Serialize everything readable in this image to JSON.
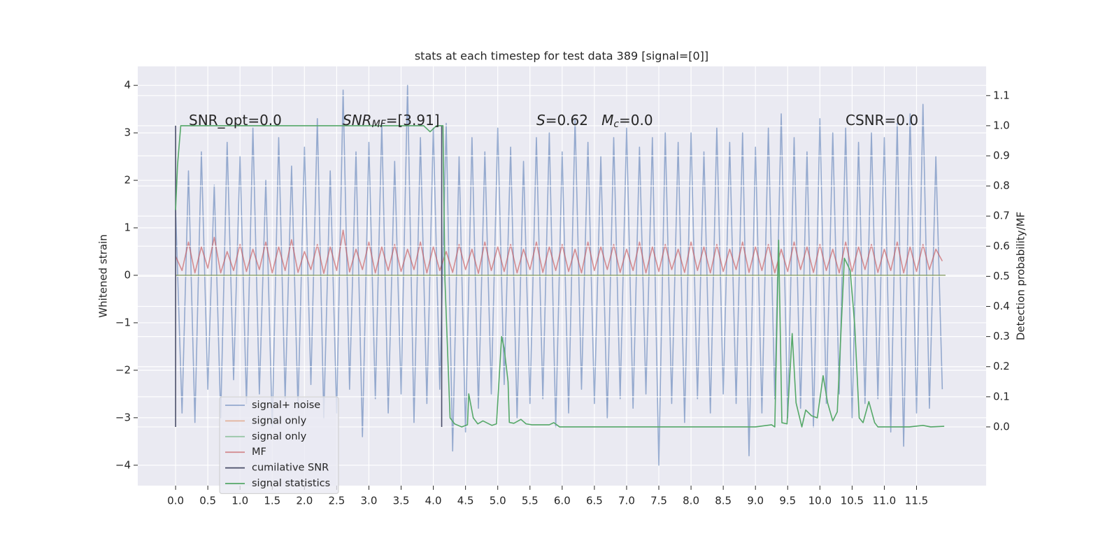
{
  "chart_data": {
    "type": "line",
    "title": "stats at each timestep for test data 389 [signal=[0]]",
    "y_label": "Whitened strain",
    "y2_label": "Detection probability/MF",
    "xlim": [
      -0.587,
      12.58
    ],
    "ylim": [
      -4.43,
      4.4
    ],
    "y2lim": [
      -0.195,
      1.197
    ],
    "xticks": [
      {
        "value": 0,
        "label": "0.0"
      },
      0.5,
      {
        "value": 1,
        "label": "1.0"
      },
      1.5,
      {
        "value": 2,
        "label": "2.0"
      },
      2.5,
      {
        "value": 3,
        "label": "3.0"
      },
      3.5,
      {
        "value": 4,
        "label": "4.0"
      },
      4.5,
      {
        "value": 5,
        "label": "5.0"
      },
      5.5,
      {
        "value": 6,
        "label": "6.0"
      },
      6.5,
      {
        "value": 7,
        "label": "7.0"
      },
      7.5,
      {
        "value": 8,
        "label": "8.0"
      },
      8.5,
      {
        "value": 9,
        "label": "9.0"
      },
      9.5,
      {
        "value": 10,
        "label": "10.0"
      },
      10.5,
      {
        "value": 11,
        "label": "11.0"
      },
      11.5
    ],
    "yticks": [
      {
        "value": -4,
        "label": "−4"
      },
      {
        "value": -3,
        "label": "−3"
      },
      {
        "value": -2,
        "label": "−2"
      },
      {
        "value": -1,
        "label": "−1"
      },
      0,
      1,
      2,
      3,
      4
    ],
    "y2ticks": [
      {
        "value": 0,
        "label": "0.0"
      },
      0.1,
      0.2,
      0.3,
      0.4,
      0.5,
      0.6,
      0.7,
      0.8,
      0.9,
      {
        "value": 1,
        "label": "1.0"
      },
      1.1
    ],
    "grid": true,
    "legend_position": "lower left",
    "x": [
      0,
      0.1,
      0.2,
      0.3,
      0.4,
      0.5,
      0.6,
      0.7,
      0.8,
      0.9,
      1,
      1.1,
      1.2,
      1.3,
      1.4,
      1.5,
      1.6,
      1.7,
      1.8,
      1.9,
      2,
      2.1,
      2.2,
      2.3,
      2.4,
      2.5,
      2.6,
      2.7,
      2.8,
      2.9,
      3,
      3.1,
      3.2,
      3.3,
      3.4,
      3.5,
      3.6,
      3.7,
      3.8,
      3.9,
      4,
      4.1,
      4.2,
      4.3,
      4.4,
      4.5,
      4.6,
      4.7,
      4.8,
      4.9,
      5,
      5.1,
      5.2,
      5.3,
      5.4,
      5.5,
      5.6,
      5.7,
      5.8,
      5.9,
      6,
      6.1,
      6.2,
      6.3,
      6.4,
      6.5,
      6.6,
      6.7,
      6.8,
      6.9,
      7,
      7.1,
      7.2,
      7.3,
      7.4,
      7.5,
      7.6,
      7.7,
      7.8,
      7.9,
      8,
      8.1,
      8.2,
      8.3,
      8.4,
      8.5,
      8.6,
      8.7,
      8.8,
      8.9,
      9,
      9.1,
      9.2,
      9.3,
      9.4,
      9.5,
      9.6,
      9.7,
      9.8,
      9.9,
      10,
      10.1,
      10.2,
      10.3,
      10.4,
      10.5,
      10.6,
      10.7,
      10.8,
      10.9,
      11,
      11.1,
      11.2,
      11.3,
      11.4,
      11.5,
      11.6,
      11.7,
      11.8,
      11.9
    ],
    "series": [
      {
        "name": "signal+ noise",
        "color": "#4c72b0",
        "opacity": 0.55,
        "values": [
          1.4,
          -2.9,
          2.2,
          -3.1,
          2.6,
          -2.4,
          1.9,
          -3.0,
          2.8,
          -2.2,
          2.5,
          -2.7,
          3.1,
          -2.5,
          2.0,
          -3.2,
          2.9,
          -2.6,
          2.3,
          -2.8,
          2.7,
          -2.3,
          3.3,
          -3.0,
          2.2,
          -2.9,
          3.9,
          -2.4,
          2.6,
          -3.4,
          2.8,
          -2.6,
          3.2,
          -2.9,
          2.4,
          -2.5,
          4.0,
          -3.1,
          2.9,
          -2.7,
          3.1,
          -2.4,
          3.2,
          -3.7,
          2.5,
          -3.3,
          2.9,
          -2.8,
          2.6,
          -2.5,
          3.1,
          -2.3,
          2.7,
          -3.0,
          2.4,
          -2.7,
          2.9,
          -2.6,
          3.0,
          -3.2,
          2.6,
          -2.9,
          3.3,
          -2.4,
          2.8,
          -2.7,
          2.5,
          -3.0,
          2.9,
          -2.6,
          3.1,
          -2.8,
          2.7,
          -2.5,
          2.9,
          -4.0,
          3.0,
          -2.7,
          2.8,
          -3.1,
          3.0,
          -2.6,
          2.6,
          -2.9,
          3.1,
          -2.5,
          2.8,
          -2.7,
          3.0,
          -3.8,
          2.7,
          -2.9,
          3.1,
          -2.6,
          3.4,
          -3.0,
          2.9,
          -2.8,
          2.6,
          -3.2,
          3.3,
          -2.7,
          3.0,
          -2.5,
          3.1,
          -3.0,
          2.8,
          -2.7,
          3.0,
          -2.6,
          2.9,
          -3.3,
          3.2,
          -3.6,
          3.4,
          -2.9,
          3.6,
          -2.8,
          2.5,
          -2.4
        ]
      },
      {
        "name": "signal only",
        "color": "#dd8452",
        "opacity": 0.55,
        "x": [
          0,
          11.95
        ],
        "values": [
          0,
          0
        ]
      },
      {
        "name": "signal only",
        "color": "#55a868",
        "opacity": 0.55,
        "x": [
          0,
          11.95
        ],
        "values": [
          0,
          0
        ]
      },
      {
        "name": "MF",
        "color": "#c44e52",
        "opacity": 0.6,
        "values": [
          0.4,
          0.1,
          0.7,
          0.05,
          0.6,
          0.15,
          0.8,
          0.05,
          0.5,
          0.1,
          0.65,
          0.08,
          0.55,
          0.12,
          0.7,
          0.05,
          0.6,
          0.1,
          0.75,
          0.06,
          0.5,
          0.12,
          0.65,
          0.04,
          0.6,
          0.1,
          0.95,
          0.07,
          0.55,
          0.12,
          0.7,
          0.05,
          0.6,
          0.1,
          0.65,
          0.08,
          0.55,
          0.12,
          0.7,
          0.05,
          0.6,
          0.1,
          0.5,
          0.06,
          0.65,
          0.12,
          0.55,
          0.04,
          0.7,
          0.1,
          0.6,
          0.08,
          0.65,
          0.05,
          0.55,
          0.12,
          0.7,
          0.06,
          0.6,
          0.1,
          0.65,
          0.08,
          0.55,
          0.05,
          0.7,
          0.1,
          0.6,
          0.12,
          0.65,
          0.06,
          0.55,
          0.1,
          0.7,
          0.05,
          0.6,
          0.08,
          0.65,
          0.12,
          0.55,
          0.06,
          0.7,
          0.1,
          0.6,
          0.05,
          0.65,
          0.08,
          0.55,
          0.12,
          0.7,
          0.06,
          0.6,
          0.1,
          0.65,
          0.05,
          0.55,
          0.08,
          0.7,
          0.12,
          0.6,
          0.06,
          0.65,
          0.1,
          0.55,
          0.05,
          0.7,
          0.08,
          0.6,
          0.12,
          0.65,
          0.06,
          0.55,
          0.1,
          0.7,
          0.05,
          0.6,
          0.08,
          0.65,
          0.12,
          0.55,
          0.3
        ]
      },
      {
        "name": "cumilative SNR",
        "color": "#4a4e69",
        "axis": "y2",
        "x": [
          0,
          0,
          2,
          4.13,
          4.13
        ],
        "values": [
          0,
          1,
          null,
          1,
          0
        ]
      },
      {
        "name": "signal statistics",
        "color": "#55a868",
        "axis": "y2",
        "x": [
          0,
          0.03,
          0.08,
          0.15,
          1,
          2,
          3,
          3.85,
          3.95,
          4.05,
          4.15,
          4.18,
          4.26,
          4.33,
          4.44,
          4.53,
          4.55,
          4.62,
          4.69,
          4.77,
          4.91,
          4.98,
          5.06,
          5.1,
          5.16,
          5.18,
          5.25,
          5.36,
          5.44,
          5.53,
          5.8,
          5.87,
          5.96,
          7,
          8,
          9,
          9.25,
          9.3,
          9.36,
          9.41,
          9.49,
          9.57,
          9.63,
          9.72,
          9.78,
          9.87,
          9.96,
          10.05,
          10.12,
          10.2,
          10.27,
          10.38,
          10.47,
          10.54,
          10.61,
          10.67,
          10.76,
          10.85,
          10.9,
          11.39,
          11.6,
          11.72,
          11.93
        ],
        "values": [
          0.72,
          0.87,
          1.0,
          1.0,
          1.0,
          1.0,
          1.0,
          1.0,
          0.98,
          1.0,
          1.0,
          0.49,
          0.03,
          0.01,
          0,
          0.007,
          0.11,
          0.03,
          0.01,
          0.02,
          0.005,
          0.01,
          0.3,
          0.26,
          0.15,
          0.015,
          0.012,
          0.025,
          0.01,
          0.007,
          0.007,
          0.014,
          0,
          0,
          0,
          0,
          0.007,
          0,
          0.62,
          0.014,
          0.01,
          0.31,
          0.08,
          0,
          0.056,
          0.037,
          0.03,
          0.17,
          0.08,
          0.02,
          0.05,
          0.56,
          0.52,
          0.34,
          0.03,
          0.014,
          0.084,
          0.014,
          0,
          0,
          0.005,
          0,
          0.002
        ]
      }
    ],
    "annotations": [
      [
        {
          "text": "SNR_opt=0.0"
        }
      ],
      [
        {
          "text": "SNR",
          "italic": true
        },
        {
          "text": "MF",
          "italic": true,
          "sub": true
        },
        {
          "text": "=[3.91]"
        }
      ],
      [
        {
          "text": "S",
          "italic": true
        },
        {
          "text": "=0.62   "
        },
        {
          "text": "M",
          "italic": true
        },
        {
          "text": "c",
          "italic": true,
          "sub": true
        },
        {
          "text": "=0.0"
        }
      ],
      [
        {
          "text": "CSNR=0.0"
        }
      ]
    ]
  }
}
